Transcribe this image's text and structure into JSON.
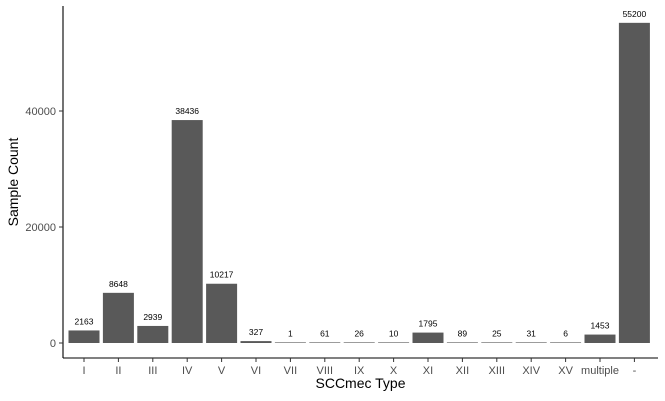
{
  "chart_data": {
    "type": "bar",
    "title": "",
    "xlabel": "SCCmec Type",
    "ylabel": "Sample Count",
    "categories": [
      "I",
      "II",
      "III",
      "IV",
      "V",
      "VI",
      "VII",
      "VIII",
      "IX",
      "X",
      "XI",
      "XII",
      "XIII",
      "XIV",
      "XV",
      "multiple",
      "-"
    ],
    "values": [
      2163,
      8648,
      2939,
      38436,
      10217,
      327,
      1,
      61,
      26,
      10,
      1795,
      89,
      25,
      31,
      6,
      1453,
      55200
    ],
    "data_labels": [
      "2163",
      "8648",
      "2939",
      "38436",
      "10217",
      "327",
      "1",
      "61",
      "26",
      "10",
      "1795",
      "89",
      "25",
      "31",
      "6",
      "1453",
      "55200"
    ],
    "ylim": [
      0,
      58000
    ],
    "yticks": [
      0,
      20000,
      40000
    ],
    "ytick_labels": [
      "0",
      "20000",
      "40000"
    ],
    "grid": false,
    "legend": "none",
    "bar_color": "#595959"
  }
}
